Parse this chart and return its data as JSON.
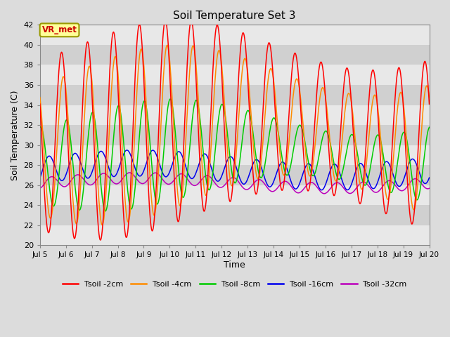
{
  "title": "Soil Temperature Set 3",
  "xlabel": "Time",
  "ylabel": "Soil Temperature (C)",
  "ylim": [
    20,
    42
  ],
  "yticks": [
    20,
    22,
    24,
    26,
    28,
    30,
    32,
    34,
    36,
    38,
    40,
    42
  ],
  "x_label_days": [
    5,
    6,
    7,
    8,
    9,
    10,
    11,
    12,
    13,
    14,
    15,
    16,
    17,
    18,
    19,
    20
  ],
  "series_colors": {
    "Tsoil -2cm": "#FF0000",
    "Tsoil -4cm": "#FF8C00",
    "Tsoil -8cm": "#00CC00",
    "Tsoil -16cm": "#0000EE",
    "Tsoil -32cm": "#BB00BB"
  },
  "series_lw": 1.1,
  "fig_bg": "#DCDCDC",
  "plot_bg": "#DCDCDC",
  "band_light": "#E8E8E8",
  "band_dark": "#D0D0D0",
  "annotation_text": "VR_met",
  "annotation_bg": "#FFFF99",
  "annotation_border": "#999900",
  "annotation_text_color": "#CC0000"
}
